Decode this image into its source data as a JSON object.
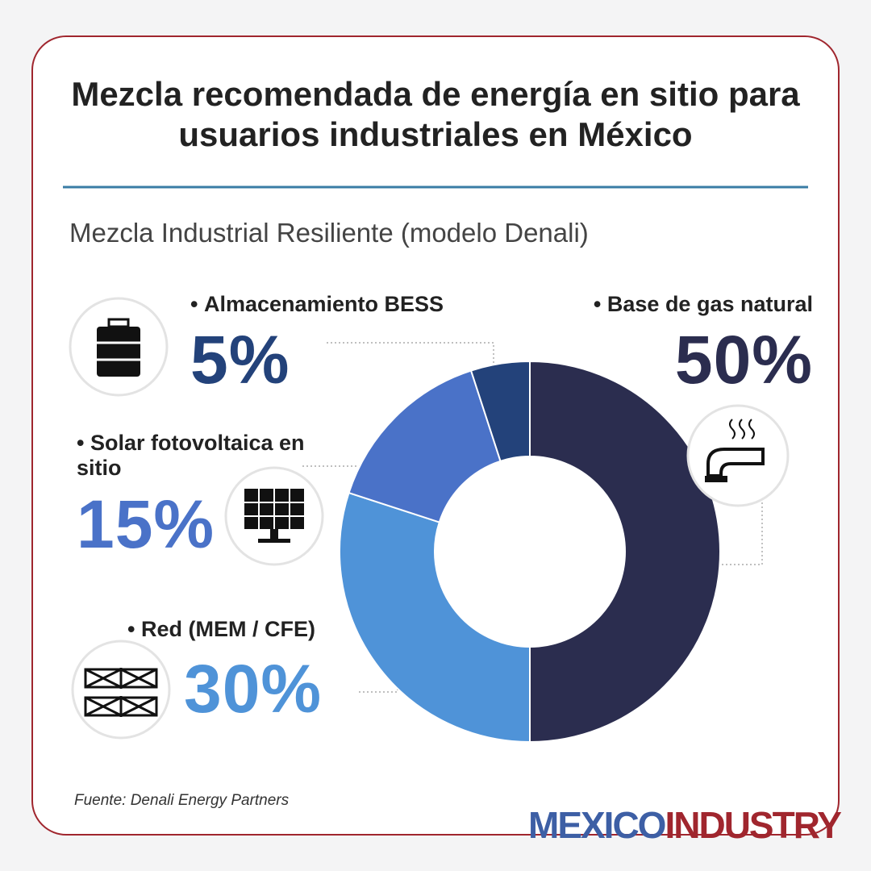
{
  "chart_data": {
    "type": "donut",
    "title": "Mezcla recomendada de energía en sitio para usuarios industriales en México",
    "subtitle": "Mezcla Industrial Resiliente (modelo Denali)",
    "categories": [
      "Base de gas natural",
      "Red (MEM / CFE)",
      "Solar fotovoltaica en sitio",
      "Almacenamiento BESS"
    ],
    "values": [
      50,
      30,
      15,
      5
    ],
    "value_labels": [
      "50%",
      "30%",
      "15%",
      "5%"
    ],
    "colors": [
      "#2b2d4f",
      "#4f93d8",
      "#4a72c8",
      "#23427a"
    ],
    "source": "Fuente: Denali Energy Partners"
  },
  "logo": {
    "left": "MEXICO",
    "right": "INDUSTRY"
  }
}
